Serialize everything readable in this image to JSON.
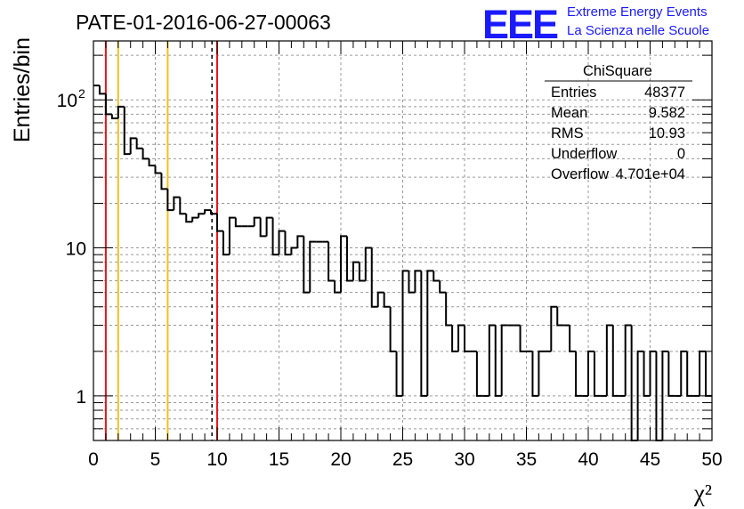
{
  "title": "PATE-01-2016-06-27-00063",
  "logo": {
    "letters": "EEE",
    "line1": "Extreme Energy Events",
    "line2": "La Scienza nelle Scuole",
    "color": "#1a1aff"
  },
  "stats": {
    "name": "ChiSquare",
    "rows": [
      {
        "label": "Entries",
        "value": "48377"
      },
      {
        "label": "Mean",
        "value": "9.582"
      },
      {
        "label": "RMS",
        "value": "10.93"
      },
      {
        "label": "Underflow",
        "value": "0"
      },
      {
        "label": "Overflow",
        "value": "4.701e+04"
      }
    ]
  },
  "chart_data": {
    "type": "bar",
    "histogram_style": "step",
    "title": "PATE-01-2016-06-27-00063",
    "xlabel": "χ²",
    "ylabel": "Entries/bin",
    "xlim": [
      0,
      50
    ],
    "ylim": [
      0.5,
      250
    ],
    "yscale": "log",
    "grid": true,
    "bin_width": 0.5,
    "xticks": [
      "0",
      "5",
      "10",
      "15",
      "20",
      "25",
      "30",
      "35",
      "40",
      "45",
      "50"
    ],
    "yticks": [
      {
        "value": 1,
        "label": "1"
      },
      {
        "value": 10,
        "label": "10"
      },
      {
        "value": 100,
        "label": "10",
        "exponent": "2"
      }
    ],
    "values": [
      125,
      110,
      80,
      75,
      90,
      43,
      55,
      47,
      40,
      36,
      32,
      25,
      18,
      22,
      17,
      15,
      16,
      17,
      18,
      17,
      13,
      9,
      16,
      14,
      14,
      14,
      16,
      12,
      16,
      9,
      13,
      9,
      10,
      12,
      5,
      11,
      11,
      11,
      6,
      5,
      12,
      6,
      8,
      6,
      10,
      4,
      5,
      4,
      2,
      1,
      7,
      5,
      7,
      1,
      7,
      6,
      5,
      3,
      2,
      3,
      2,
      2,
      1,
      1,
      3,
      1,
      3,
      3,
      3,
      2,
      2,
      1,
      2,
      2,
      4,
      3,
      3,
      2,
      1,
      1,
      2,
      1,
      1,
      3,
      1,
      1,
      3,
      0.5,
      2,
      1,
      2,
      0.5,
      2,
      1,
      1,
      2,
      1,
      1,
      2,
      1
    ],
    "vertical_lines": [
      {
        "x": 1,
        "color": "#e8141c",
        "style": "solid"
      },
      {
        "x": 2,
        "color": "#f4c020",
        "style": "solid"
      },
      {
        "x": 6,
        "color": "#f4c020",
        "style": "solid"
      },
      {
        "x": 9.582,
        "color": "#000000",
        "style": "dashed"
      },
      {
        "x": 10,
        "color": "#e8141c",
        "style": "solid"
      }
    ]
  }
}
